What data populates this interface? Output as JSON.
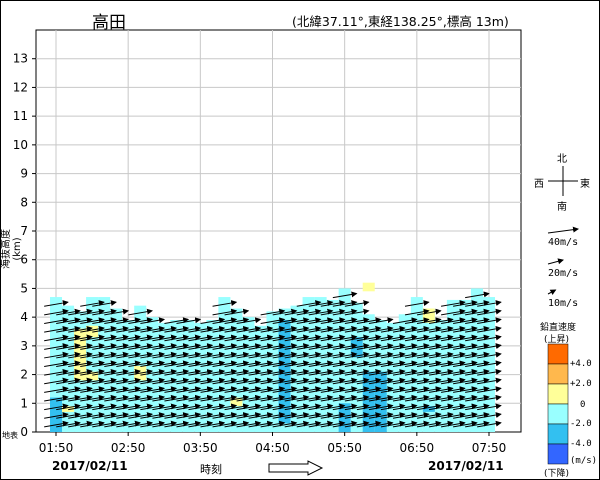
{
  "header": {
    "station": "高田",
    "location": "(北緯37.11°,東経138.25°,標高 13m)"
  },
  "axes": {
    "ylabel": "海抜高度 (km)",
    "xlabel": "時刻",
    "surface_label": "地表",
    "date_left": "2017/02/11",
    "date_right": "2017/02/11"
  },
  "compass": {
    "north": "北",
    "south": "南",
    "east": "東",
    "west": "西"
  },
  "reference_arrows": [
    {
      "label": "40m/s",
      "speed": 40
    },
    {
      "label": "20m/s",
      "speed": 20
    },
    {
      "label": "10m/s",
      "speed": 10
    }
  ],
  "legend": {
    "title_top": "鉛直速度",
    "title_up": "(上昇)",
    "unit": "(m/s)",
    "title_down": "(下降)",
    "tick_labels": [
      "+4.0",
      "+2.0",
      "0",
      "-2.0",
      "-4.0"
    ],
    "colors": [
      "#ff6a00",
      "#ffb84d",
      "#ffff99",
      "#99ffff",
      "#33c0f0",
      "#3366ff"
    ]
  },
  "chart_data": {
    "type": "wind_profile",
    "ylim": [
      0,
      14
    ],
    "yticks": [
      0,
      1,
      2,
      3,
      4,
      5,
      6,
      7,
      8,
      9,
      10,
      11,
      12,
      13
    ],
    "xticks": [
      "01:50",
      "02:50",
      "03:50",
      "04:50",
      "05:50",
      "06:50",
      "07:50"
    ],
    "time_columns": [
      "01:50",
      "02:00",
      "02:10",
      "02:20",
      "02:30",
      "02:40",
      "02:50",
      "03:00",
      "03:10",
      "03:20",
      "03:30",
      "03:40",
      "03:50",
      "04:00",
      "04:10",
      "04:20",
      "04:30",
      "04:40",
      "04:50",
      "05:00",
      "05:10",
      "05:20",
      "05:30",
      "05:40",
      "05:50",
      "06:00",
      "06:10",
      "06:20",
      "06:30",
      "06:40",
      "06:50",
      "07:00",
      "07:10",
      "07:20",
      "07:30",
      "07:40",
      "07:50"
    ],
    "top_heights_km": [
      4.7,
      4.4,
      4.2,
      4.7,
      4.7,
      4.3,
      3.9,
      4.4,
      4.0,
      3.8,
      3.9,
      3.9,
      3.8,
      3.9,
      4.7,
      4.3,
      4.0,
      3.7,
      4.2,
      4.3,
      4.4,
      4.7,
      4.7,
      4.6,
      5.0,
      4.5,
      4.1,
      3.9,
      3.8,
      4.1,
      4.7,
      4.3,
      3.9,
      4.6,
      4.6,
      5.0,
      4.7
    ],
    "wind_direction": "westerly (from W to E, slightly from WSW)",
    "typical_speed_ms": 22,
    "vertical_velocity_cells": [
      {
        "t": "01:50",
        "h": [
          0,
          1.2
        ],
        "w": -3.0
      },
      {
        "t": "02:10",
        "h": [
          1.8,
          3.6
        ],
        "w": 1.0
      },
      {
        "t": "02:20",
        "h": [
          1.8,
          2.1
        ],
        "w": 1.0
      },
      {
        "t": "02:00",
        "h": [
          0.7,
          0.9
        ],
        "w": 1.0
      },
      {
        "t": "02:20",
        "h": [
          3.3,
          3.7
        ],
        "w": 1.0
      },
      {
        "t": "03:00",
        "h": [
          1.8,
          2.3
        ],
        "w": 1.0
      },
      {
        "t": "04:20",
        "h": [
          0.9,
          1.2
        ],
        "w": 1.0
      },
      {
        "t": "05:00",
        "h": [
          0.3,
          3.9
        ],
        "w": -2.5
      },
      {
        "t": "05:50",
        "h": [
          0,
          1.0
        ],
        "w": -3.0
      },
      {
        "t": "06:00",
        "h": [
          2.6,
          3.3
        ],
        "w": -2.5
      },
      {
        "t": "06:10",
        "h": [
          0,
          2.1
        ],
        "w": -3.0
      },
      {
        "t": "06:20",
        "h": [
          0,
          2.1
        ],
        "w": -3.0
      },
      {
        "t": "06:10",
        "h": [
          4.9,
          5.2
        ],
        "w": 1.0
      },
      {
        "t": "07:00",
        "h": [
          3.8,
          4.3
        ],
        "w": 1.0
      },
      {
        "t": "07:00",
        "h": [
          0.7,
          0.9
        ],
        "w": -2.5
      }
    ]
  }
}
